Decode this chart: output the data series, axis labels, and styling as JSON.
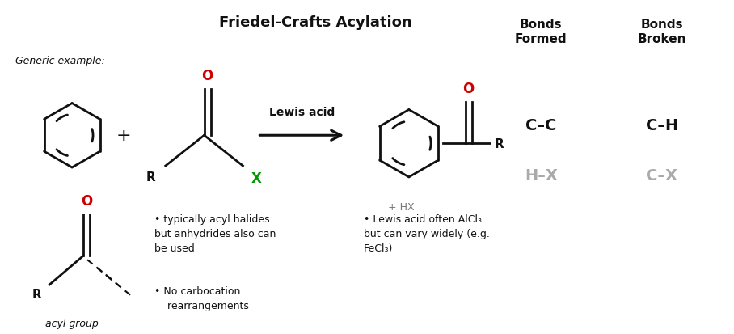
{
  "title": "Friedel-Crafts Acylation",
  "title_fontsize": 13,
  "background_color": "#ffffff",
  "generic_example_label": "Generic example:",
  "lewis_acid_label": "Lewis acid",
  "bonds_formed_header": "Bonds\nFormed",
  "bonds_broken_header": "Bonds\nBroken",
  "bonds_formed_1": "C–C",
  "bonds_formed_2": "H–X",
  "bonds_broken_1": "C–H",
  "bonds_broken_2": "C–X",
  "hx_label": "+ HX",
  "note1": "• typically acyl halides\nbut anhydrides also can\nbe used",
  "note2": "• No carbocation\n    rearrangements",
  "note3": "• Lewis acid often AlCl₃\nbut can vary widely (e.g.\nFeCl₃)",
  "acyl_group_label": "acyl group",
  "black": "#111111",
  "red": "#cc0000",
  "green": "#009900",
  "gray": "#aaaaaa",
  "darkgray": "#777777"
}
